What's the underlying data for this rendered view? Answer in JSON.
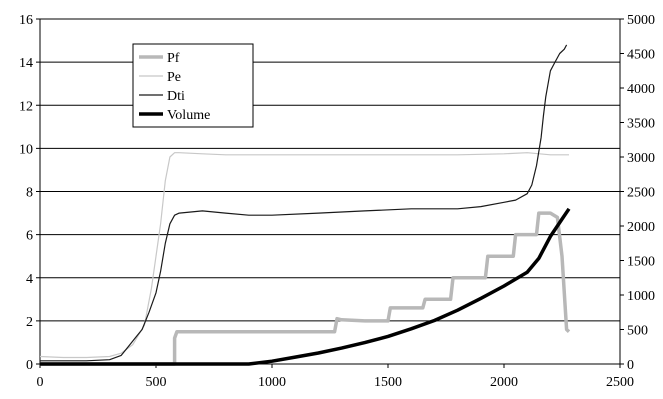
{
  "chart_data": {
    "type": "line",
    "title": "",
    "xlabel": "",
    "ylabel": "",
    "y2label": "",
    "xlim": [
      0,
      2500
    ],
    "ylim": [
      0,
      16
    ],
    "y2lim": [
      0,
      5000
    ],
    "grid": "horizontal",
    "legend_placement": "top-left",
    "x_ticks": [
      "0",
      "500",
      "1000",
      "1500",
      "2000",
      "2500"
    ],
    "y_ticks": [
      "0",
      "2",
      "4",
      "6",
      "8",
      "10",
      "12",
      "14",
      "16"
    ],
    "y2_ticks": [
      "0",
      "500",
      "1000",
      "1500",
      "2000",
      "2500",
      "3000",
      "3500",
      "4000",
      "4500",
      "5000"
    ],
    "colors": {
      "Pf": "#b8b8b8",
      "Pe": "#c8c8c8",
      "Dti": "#1a1a1a",
      "Volume": "#000000"
    },
    "series": [
      {
        "name": "Pf",
        "axis": "left",
        "x": [
          0,
          580,
          580,
          590,
          700,
          1270,
          1280,
          1300,
          1400,
          1500,
          1510,
          1650,
          1660,
          1770,
          1780,
          1920,
          1930,
          2040,
          2050,
          2140,
          2150,
          2200,
          2230,
          2250,
          2270,
          2280
        ],
        "y": [
          0,
          0,
          1.2,
          1.5,
          1.5,
          1.5,
          2.1,
          2.05,
          2.0,
          2.0,
          2.6,
          2.6,
          3.0,
          3.0,
          4.0,
          4.0,
          5.0,
          5.0,
          6.0,
          6.0,
          7.0,
          7.0,
          6.8,
          5.0,
          1.6,
          1.5
        ]
      },
      {
        "name": "Pe",
        "axis": "left",
        "x": [
          0,
          100,
          200,
          300,
          350,
          400,
          450,
          480,
          500,
          520,
          540,
          560,
          580,
          600,
          700,
          800,
          900,
          1000,
          1200,
          1400,
          1600,
          1800,
          2000,
          2100,
          2200,
          2280
        ],
        "y": [
          0.35,
          0.3,
          0.3,
          0.35,
          0.5,
          0.9,
          1.8,
          3.5,
          5.0,
          6.5,
          8.5,
          9.6,
          9.8,
          9.8,
          9.75,
          9.7,
          9.7,
          9.7,
          9.7,
          9.7,
          9.7,
          9.7,
          9.75,
          9.8,
          9.7,
          9.7
        ]
      },
      {
        "name": "Dti",
        "axis": "left",
        "x": [
          0,
          200,
          300,
          350,
          380,
          410,
          440,
          470,
          500,
          520,
          540,
          560,
          580,
          600,
          700,
          800,
          900,
          1000,
          1200,
          1400,
          1600,
          1800,
          1900,
          2000,
          2050,
          2100,
          2120,
          2140,
          2160,
          2170,
          2180,
          2190,
          2200,
          2220,
          2240,
          2260,
          2270
        ],
        "y": [
          0.15,
          0.15,
          0.2,
          0.4,
          0.8,
          1.2,
          1.6,
          2.4,
          3.3,
          4.3,
          5.6,
          6.5,
          6.9,
          7.0,
          7.1,
          7.0,
          6.9,
          6.9,
          7.0,
          7.1,
          7.2,
          7.2,
          7.3,
          7.5,
          7.6,
          7.9,
          8.3,
          9.2,
          10.5,
          11.5,
          12.4,
          13.0,
          13.6,
          14.0,
          14.4,
          14.6,
          14.8
        ]
      },
      {
        "name": "Volume",
        "axis": "right",
        "x": [
          0,
          500,
          900,
          1000,
          1100,
          1200,
          1300,
          1400,
          1500,
          1600,
          1700,
          1800,
          1900,
          2000,
          2100,
          2150,
          2200,
          2250,
          2280
        ],
        "y": [
          0,
          0,
          0,
          40,
          100,
          160,
          230,
          310,
          400,
          510,
          630,
          780,
          950,
          1130,
          1330,
          1530,
          1850,
          2100,
          2250
        ]
      }
    ]
  }
}
